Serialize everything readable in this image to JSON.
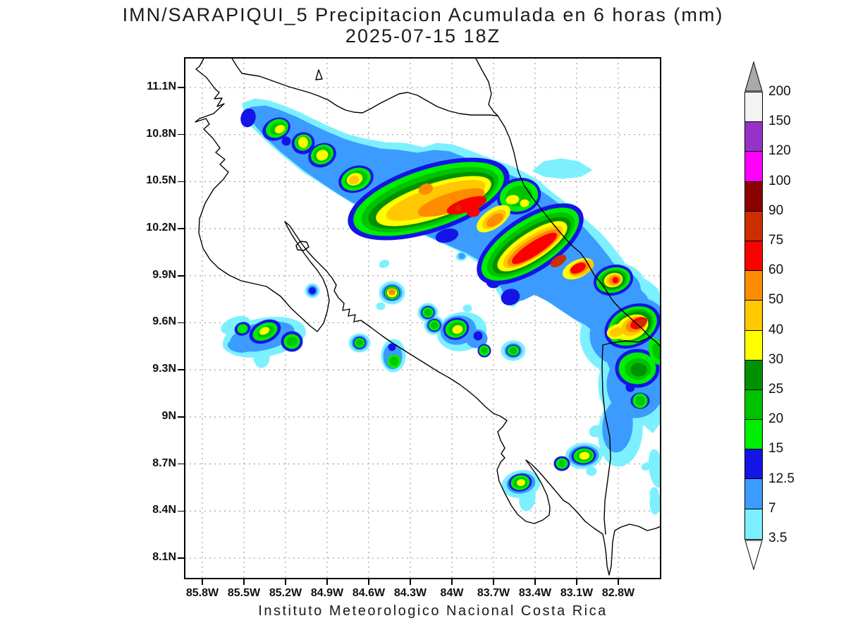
{
  "header": {
    "title": "IMN/SARAPIQUI_5 Precipitacion Acumulada en 6 horas (mm)",
    "datetime": "2025-07-15 18Z"
  },
  "footer": {
    "caption": "Instituto Meteorologico Nacional Costa Rica"
  },
  "axes": {
    "lat_ticks": [
      {
        "label": "11.1N",
        "value": 11.1
      },
      {
        "label": "10.8N",
        "value": 10.8
      },
      {
        "label": "10.5N",
        "value": 10.5
      },
      {
        "label": "10.2N",
        "value": 10.2
      },
      {
        "label": "9.9N",
        "value": 9.9
      },
      {
        "label": "9.6N",
        "value": 9.6
      },
      {
        "label": "9.3N",
        "value": 9.3
      },
      {
        "label": "9N",
        "value": 9.0
      },
      {
        "label": "8.7N",
        "value": 8.7
      },
      {
        "label": "8.4N",
        "value": 8.4
      },
      {
        "label": "8.1N",
        "value": 8.1
      }
    ],
    "lon_ticks": [
      {
        "label": "85.8W",
        "value": 85.8
      },
      {
        "label": "85.5W",
        "value": 85.5
      },
      {
        "label": "85.2W",
        "value": 85.2
      },
      {
        "label": "84.9W",
        "value": 84.9
      },
      {
        "label": "84.6W",
        "value": 84.6
      },
      {
        "label": "84.3W",
        "value": 84.3
      },
      {
        "label": "84W",
        "value": 84.0
      },
      {
        "label": "83.7W",
        "value": 83.7
      },
      {
        "label": "83.4W",
        "value": 83.4
      },
      {
        "label": "83.1W",
        "value": 83.1
      },
      {
        "label": "82.8W",
        "value": 82.8
      }
    ]
  },
  "colorbar": {
    "tick_labels": [
      "200",
      "150",
      "120",
      "100",
      "90",
      "75",
      "60",
      "50",
      "40",
      "30",
      "25",
      "20",
      "15",
      "12.5",
      "7",
      "3.5"
    ],
    "over_arrow_color": "#AAAAAA",
    "under_arrow_color": "#FFFFFF"
  },
  "chart_data": {
    "type": "heatmap",
    "subtype": "filled-contour precipitation map",
    "title": "IMN/SARAPIQUI_5 Precipitacion Acumulada en 6 horas (mm)",
    "valid_time": "2025-07-15 18Z",
    "units": "mm",
    "source_label": "Instituto Meteorologico Nacional Costa Rica",
    "lon_range_deg_w": [
      85.93,
      82.49
    ],
    "lat_range_deg_n": [
      7.96,
      11.29
    ],
    "grid": "dotted graticule every 0.3 degree",
    "levels_mm": [
      3.5,
      7,
      12.5,
      15,
      20,
      25,
      30,
      40,
      50,
      60,
      75,
      90,
      100,
      120,
      150,
      200
    ],
    "level_colors": {
      "3.5": "#7DF0FF",
      "7": "#3C9BFF",
      "12.5": "#1414E6",
      "15": "#00EE00",
      "20": "#00C300",
      "25": "#009100",
      "30": "#FFFF00",
      "40": "#FFC800",
      "50": "#FF8C00",
      "60": "#FA0000",
      "75": "#CC2E00",
      "90": "#8C0000",
      "100": "#FF00FF",
      "120": "#9632C8",
      "150": "#F4F4F4",
      "200": "#AAAAAA"
    },
    "features": [
      {
        "name": "NW convective band cell 1",
        "lat_n": 10.83,
        "lon_w": 85.27,
        "peak_mm": "30-40"
      },
      {
        "name": "NW convective band cell 2",
        "lat_n": 10.74,
        "lon_w": 85.08,
        "peak_mm": "30-40"
      },
      {
        "name": "NW convective band cell 3",
        "lat_n": 10.67,
        "lon_w": 84.94,
        "peak_mm": "30-40"
      },
      {
        "name": "Band cell near 84.7W",
        "lat_n": 10.52,
        "lon_w": 84.69,
        "peak_mm": "40-50"
      },
      {
        "name": "Central band maximum (Sarapiqui area)",
        "lat_n": 10.35,
        "lon_w": 83.9,
        "peak_mm": "75-90"
      },
      {
        "name": "Second band maximum toward Limon",
        "lat_n": 10.05,
        "lon_w": 83.3,
        "peak_mm": "75-90"
      },
      {
        "name": "Coastal orange cell",
        "lat_n": 9.87,
        "lon_w": 82.83,
        "peak_mm": "50-75"
      },
      {
        "name": "Caribbean border cell",
        "lat_n": 9.58,
        "lon_w": 82.67,
        "peak_mm": "75-90"
      },
      {
        "name": "Isolated cell w/ orange core",
        "lat_n": 9.79,
        "lon_w": 84.43,
        "peak_mm": "50-60"
      },
      {
        "name": "Isolated cell central valley",
        "lat_n": 9.56,
        "lon_w": 83.96,
        "peak_mm": "30-40"
      },
      {
        "name": "Nicoya south cluster",
        "lat_n": 9.53,
        "lon_w": 85.35,
        "peak_mm": "30-40"
      },
      {
        "name": "South cell near Golfo Dulce",
        "lat_n": 8.58,
        "lon_w": 83.5,
        "peak_mm": "30-40"
      },
      {
        "name": "South cell near border",
        "lat_n": 8.75,
        "lon_w": 83.04,
        "peak_mm": "30-40"
      }
    ],
    "pattern_summary": "Diagonal NW-SE band of heavy accumulated precipitation from the Nicaragua border across the northern plains to the Caribbean coast; scattered lighter cells over the Pacific slope and the south."
  }
}
